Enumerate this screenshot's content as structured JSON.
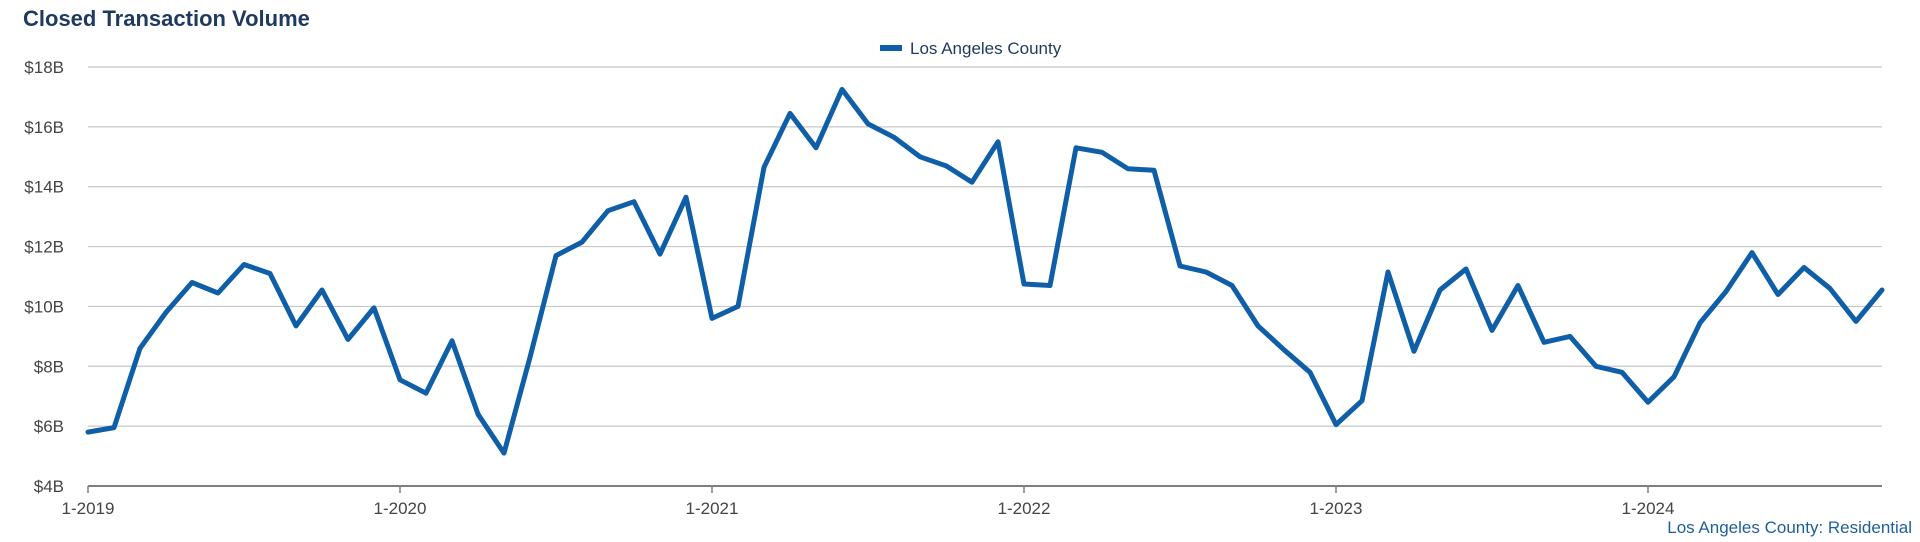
{
  "title": "Closed Transaction Volume",
  "footer": "Los Angeles County: Residential",
  "colors": {
    "series": "#0f5ea8",
    "grid": "#c8c8c8",
    "axis": "#7f7f7f",
    "title": "#1f3a5f",
    "footer": "#1f5f9e"
  },
  "chart_data": {
    "type": "line",
    "title": "Closed Transaction Volume",
    "xlabel": "",
    "ylabel": "",
    "ylim": [
      4,
      18
    ],
    "y_ticks": [
      4,
      6,
      8,
      10,
      12,
      14,
      16,
      18
    ],
    "y_tick_labels": [
      "$4B",
      "$6B",
      "$8B",
      "$10B",
      "$12B",
      "$14B",
      "$16B",
      "$18B"
    ],
    "x_ticks": [
      "2019-01",
      "2020-01",
      "2021-01",
      "2022-01",
      "2023-01",
      "2024-01"
    ],
    "x_tick_labels": [
      "1-2019",
      "1-2020",
      "1-2021",
      "1-2022",
      "1-2023",
      "1-2024"
    ],
    "x_start": "2019-01",
    "x_end": "2024-10",
    "grid": true,
    "legend": "top-center",
    "series": [
      {
        "name": "Los Angeles County",
        "color": "#0f5ea8",
        "x": [
          "2019-01",
          "2019-02",
          "2019-03",
          "2019-04",
          "2019-05",
          "2019-06",
          "2019-07",
          "2019-08",
          "2019-09",
          "2019-10",
          "2019-11",
          "2019-12",
          "2020-01",
          "2020-02",
          "2020-03",
          "2020-04",
          "2020-05",
          "2020-06",
          "2020-07",
          "2020-08",
          "2020-09",
          "2020-10",
          "2020-11",
          "2020-12",
          "2021-01",
          "2021-02",
          "2021-03",
          "2021-04",
          "2021-05",
          "2021-06",
          "2021-07",
          "2021-08",
          "2021-09",
          "2021-10",
          "2021-11",
          "2021-12",
          "2022-01",
          "2022-02",
          "2022-03",
          "2022-04",
          "2022-05",
          "2022-06",
          "2022-07",
          "2022-08",
          "2022-09",
          "2022-10",
          "2022-11",
          "2022-12",
          "2023-01",
          "2023-02",
          "2023-03",
          "2023-04",
          "2023-05",
          "2023-06",
          "2023-07",
          "2023-08",
          "2023-09",
          "2023-10",
          "2023-11",
          "2023-12",
          "2024-01",
          "2024-02",
          "2024-03",
          "2024-04",
          "2024-05",
          "2024-06",
          "2024-07",
          "2024-08",
          "2024-09",
          "2024-10"
        ],
        "values": [
          5.8,
          5.95,
          8.6,
          9.8,
          10.8,
          10.45,
          11.4,
          11.1,
          9.35,
          10.55,
          8.9,
          9.95,
          7.55,
          7.1,
          8.85,
          6.4,
          5.1,
          8.3,
          11.7,
          12.15,
          13.2,
          13.5,
          11.75,
          13.65,
          9.6,
          10.0,
          14.65,
          16.45,
          15.3,
          17.25,
          16.1,
          15.65,
          15.0,
          14.7,
          14.15,
          15.5,
          10.75,
          10.7,
          15.3,
          15.15,
          14.6,
          14.55,
          11.35,
          11.15,
          10.7,
          9.35,
          8.55,
          7.8,
          6.05,
          6.85,
          11.15,
          8.5,
          10.55,
          11.25,
          9.2,
          10.7,
          8.8,
          9.0,
          8.0,
          7.8,
          6.8,
          7.65,
          9.45,
          10.5,
          11.8,
          10.4,
          11.3,
          10.6,
          9.5,
          10.55
        ]
      }
    ]
  }
}
